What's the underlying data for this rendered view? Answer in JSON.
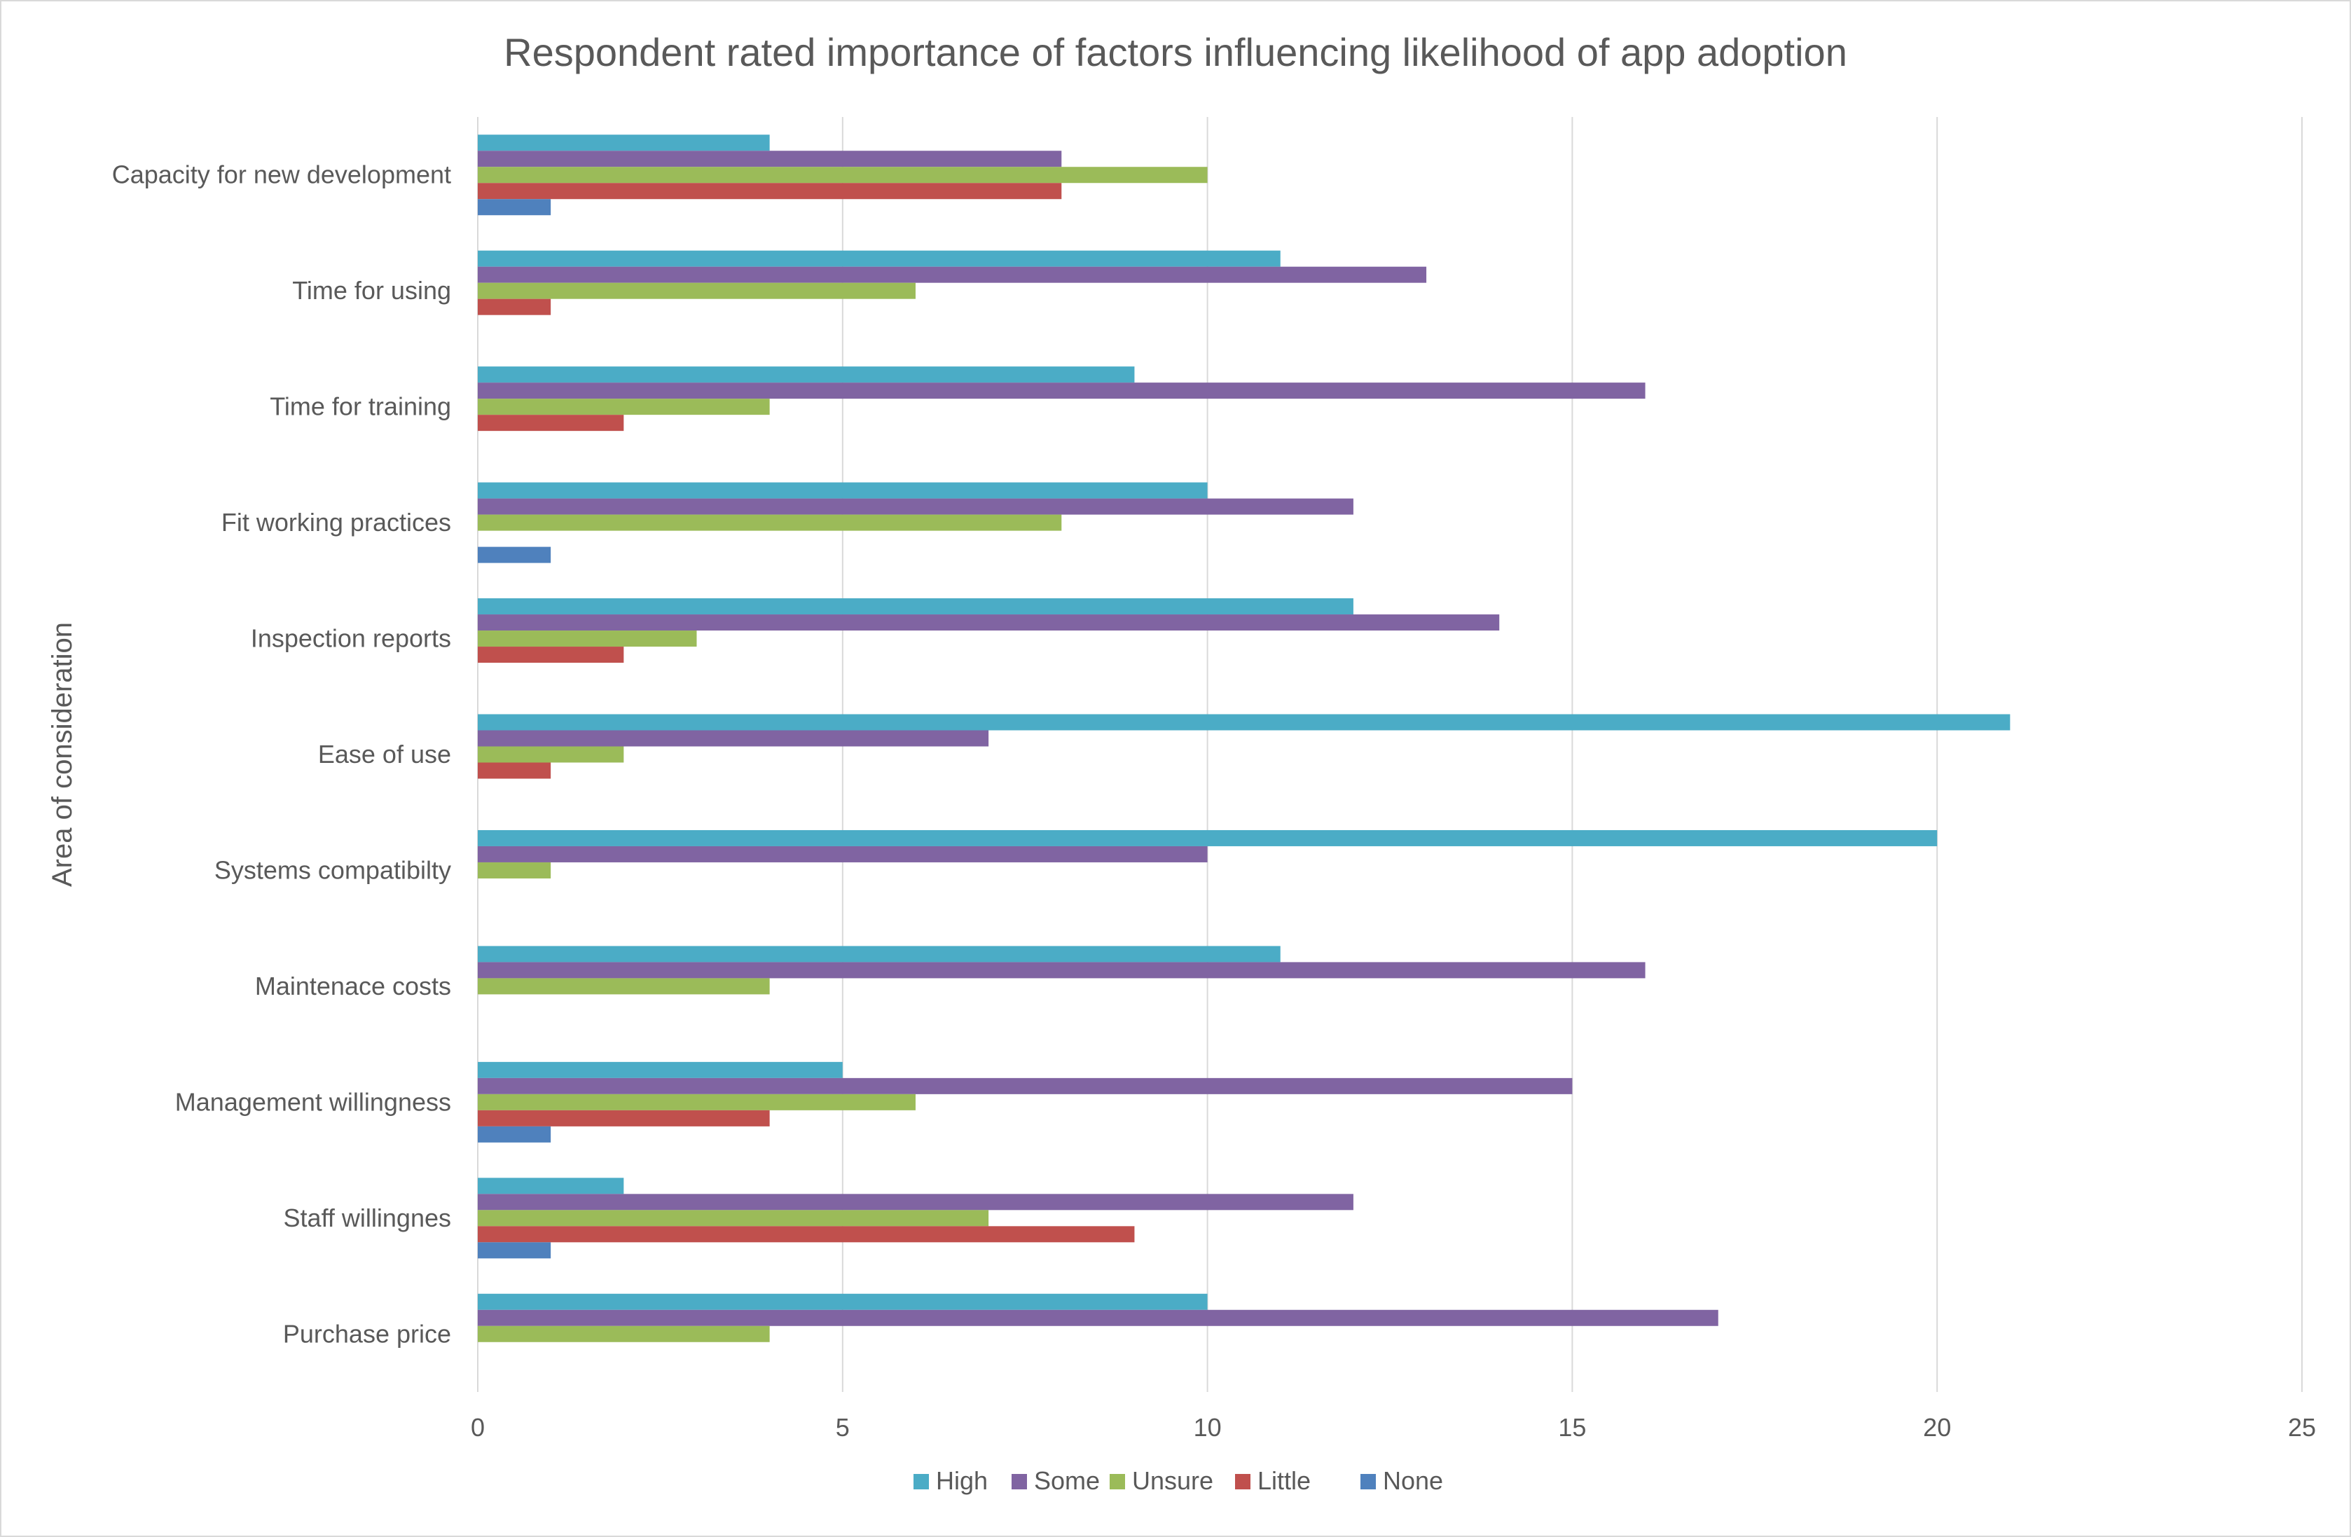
{
  "chart_data": {
    "type": "bar",
    "orientation": "horizontal",
    "title": "Respondent rated importance of factors influencing likelihood of app adoption",
    "ylabel": "Area of consideration",
    "xlabel": "",
    "xlim": [
      0,
      25
    ],
    "xticks": [
      0,
      5,
      10,
      15,
      20,
      25
    ],
    "grid": "vertical",
    "legend_position": "bottom",
    "categories": [
      "Capacity for new development",
      "Time for using",
      "Time for training",
      "Fit working practices",
      "Inspection reports",
      "Ease of use",
      "Systems compatibilty",
      "Maintenace costs",
      "Management willingness",
      "Staff willingnes",
      "Purchase price"
    ],
    "series": [
      {
        "name": "High",
        "color": "#4bacc6",
        "values": [
          4,
          11,
          9,
          10,
          12,
          21,
          20,
          11,
          5,
          2,
          10
        ]
      },
      {
        "name": "Some",
        "color": "#8064a2",
        "values": [
          8,
          13,
          16,
          12,
          14,
          7,
          10,
          16,
          15,
          12,
          17
        ]
      },
      {
        "name": "Unsure",
        "color": "#9bbb59",
        "values": [
          10,
          6,
          4,
          8,
          3,
          2,
          1,
          4,
          6,
          7,
          4
        ]
      },
      {
        "name": "Little",
        "color": "#c0504d",
        "values": [
          8,
          1,
          2,
          0,
          2,
          1,
          0,
          0,
          4,
          9,
          0
        ]
      },
      {
        "name": "None",
        "color": "#4f81bd",
        "values": [
          1,
          0,
          0,
          1,
          0,
          0,
          0,
          0,
          1,
          1,
          0
        ]
      }
    ]
  }
}
